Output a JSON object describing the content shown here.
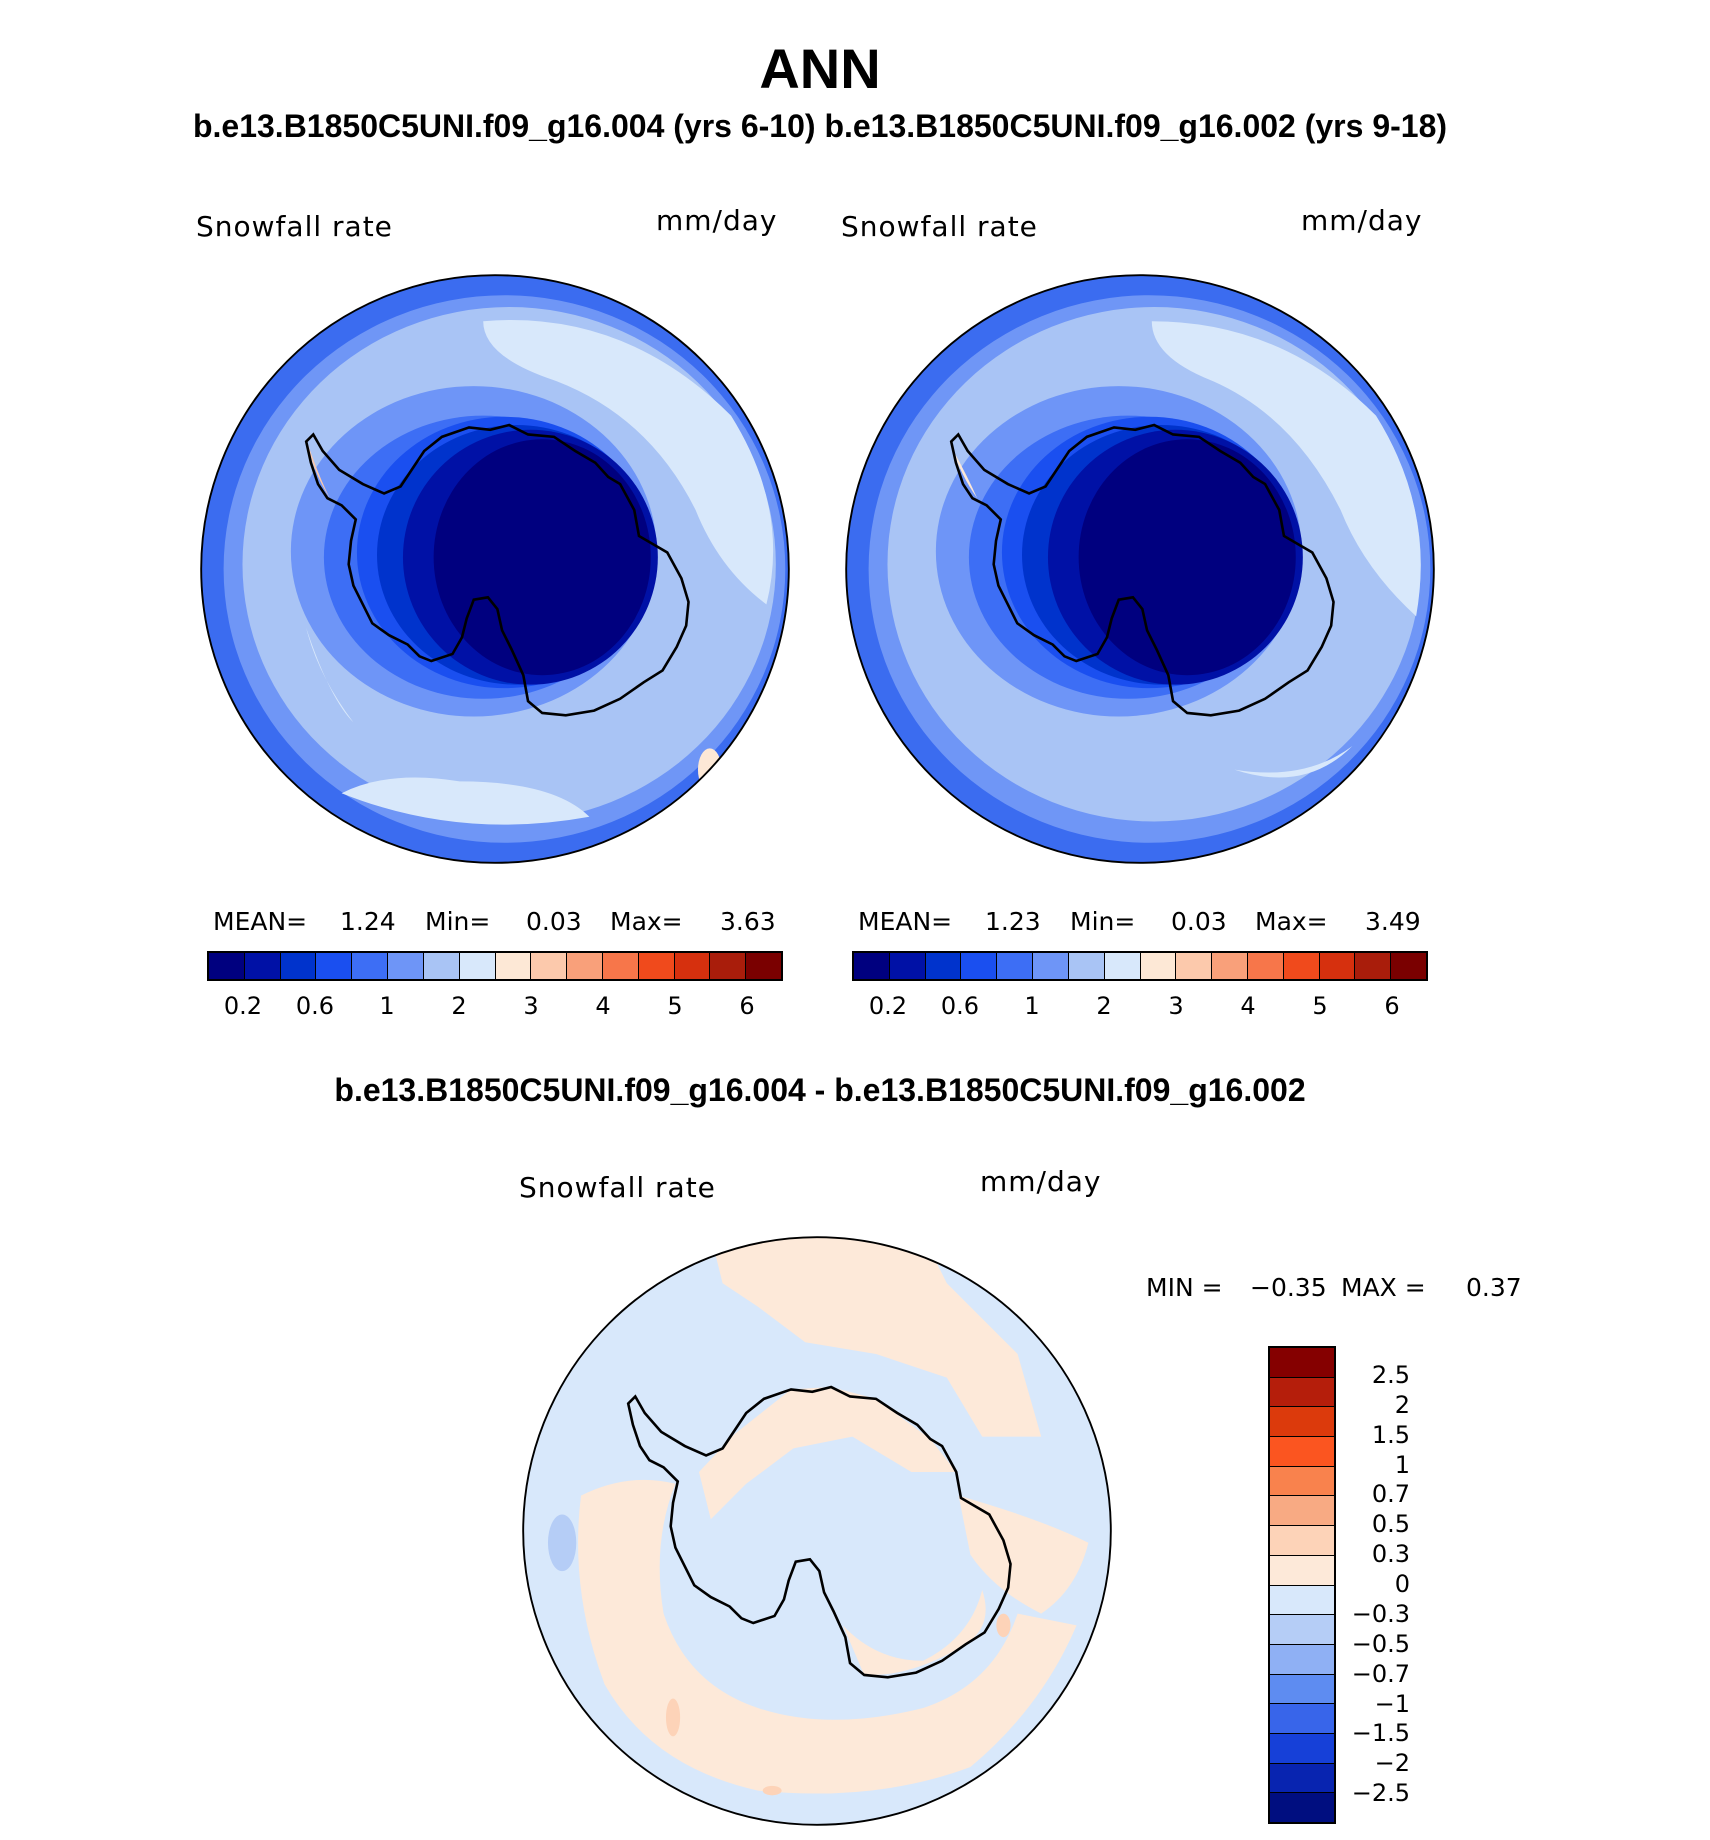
{
  "figure": {
    "title": "ANN",
    "subtitle_top": "b.e13.B1850C5UNI.f09_g16.004 (yrs 6-10) b.e13.B1850C5UNI.f09_g16.002 (yrs 9-18)",
    "subtitle_diff": "b.e13.B1850C5UNI.f09_g16.004 - b.e13.B1850C5UNI.f09_g16.002"
  },
  "panels": [
    {
      "variable": "Snowfall rate",
      "units": "mm/day",
      "mean_label": "MEAN=",
      "mean_value": "1.24",
      "min_label": "Min=",
      "min_value": "0.03",
      "max_label": "Max=",
      "max_value": "3.63"
    },
    {
      "variable": "Snowfall rate",
      "units": "mm/day",
      "mean_label": "MEAN=",
      "mean_value": "1.23",
      "min_label": "Min=",
      "min_value": "0.03",
      "max_label": "Max=",
      "max_value": "3.49"
    }
  ],
  "diff_panel": {
    "variable": "Snowfall rate",
    "units": "mm/day",
    "min_label": "MIN =",
    "min_value": "−0.35",
    "max_label": "MAX =",
    "max_value": "0.37"
  },
  "abs_colorbar": {
    "colors": [
      "#00007f",
      "#0011a6",
      "#0033cc",
      "#1a4ff0",
      "#3d6ef5",
      "#6e95f7",
      "#a9c4f5",
      "#d8e8fb",
      "#fde8d6",
      "#fcc9ac",
      "#f9a07a",
      "#f7764a",
      "#f04a1c",
      "#d6300e",
      "#a91d0b",
      "#7a0000"
    ],
    "tick_labels": [
      "0.2",
      "0.6",
      "1",
      "2",
      "3",
      "4",
      "5",
      "6"
    ]
  },
  "diff_colorbar": {
    "colors_top_to_bottom": [
      "#850000",
      "#b51e0b",
      "#dc3a0c",
      "#fb5520",
      "#f9824d",
      "#f8aa83",
      "#fdd3b8",
      "#fde9d9",
      "#d8e8fb",
      "#b5cdf6",
      "#8fb0f4",
      "#5e8cf1",
      "#3865ea",
      "#1640d8",
      "#0824b0",
      "#000e80"
    ],
    "tick_labels": [
      "2.5",
      "2",
      "1.5",
      "1",
      "0.7",
      "0.5",
      "0.3",
      "0",
      "−0.3",
      "−0.5",
      "−0.7",
      "−1",
      "−1.5",
      "−2",
      "−2.5"
    ]
  }
}
